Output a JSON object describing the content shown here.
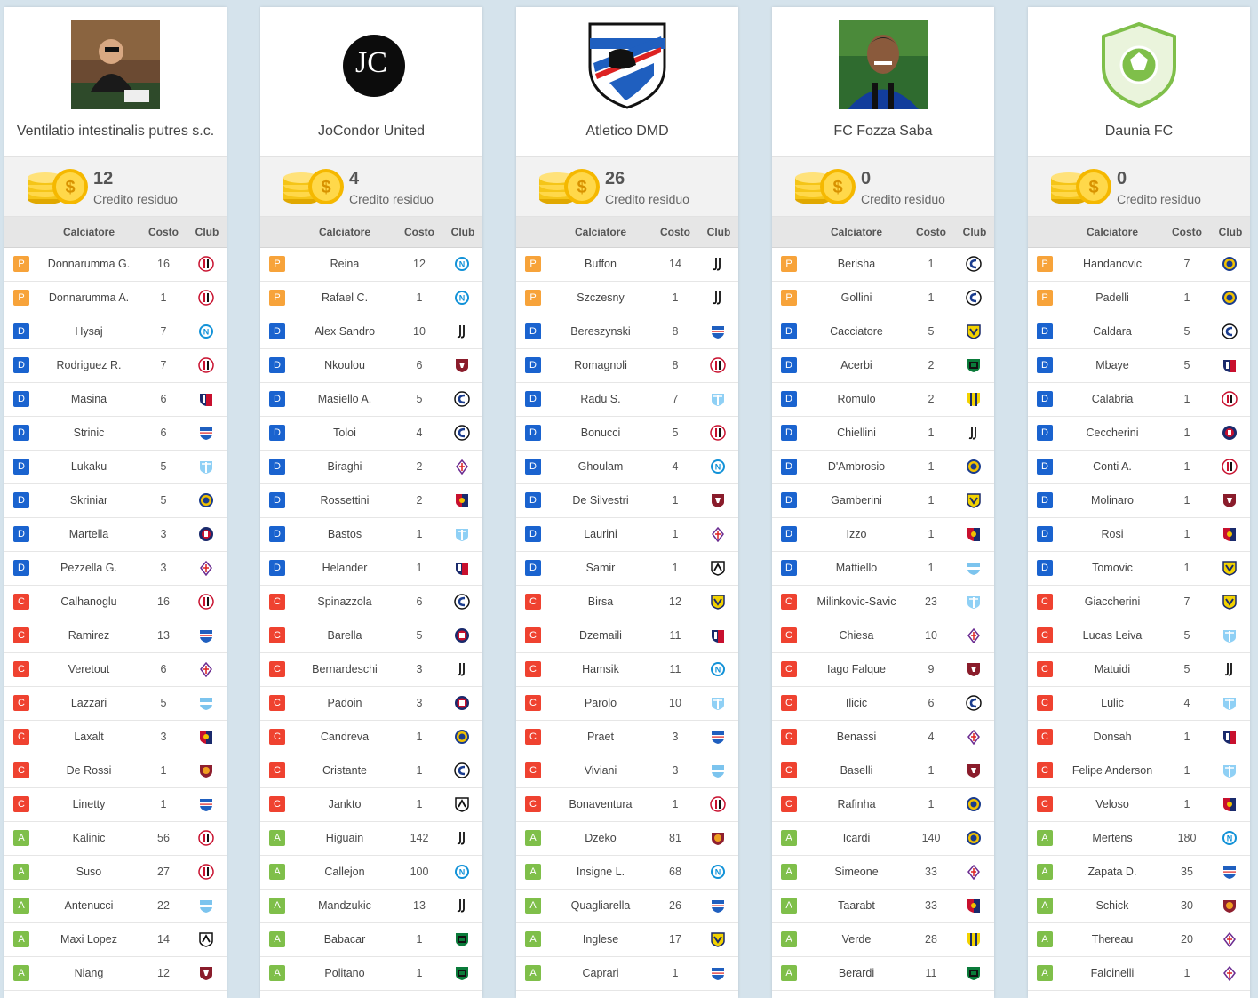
{
  "labels": {
    "credit": "Credito residuo",
    "col_player": "Calciatore",
    "col_cost": "Costo",
    "col_club": "Club"
  },
  "colors": {
    "P": "#f7a33a",
    "D": "#1a63cf",
    "C": "#ef4230",
    "A": "#7fbf4a"
  },
  "teams": [
    {
      "name": "Ventilatio intestinalis putres s.c.",
      "logo": "photo-icon",
      "credit": "12",
      "players": [
        {
          "role": "P",
          "name": "Donnarumma G.",
          "cost": "16",
          "club": "milan"
        },
        {
          "role": "P",
          "name": "Donnarumma A.",
          "cost": "1",
          "club": "milan"
        },
        {
          "role": "D",
          "name": "Hysaj",
          "cost": "7",
          "club": "napoli"
        },
        {
          "role": "D",
          "name": "Rodriguez R.",
          "cost": "7",
          "club": "milan"
        },
        {
          "role": "D",
          "name": "Masina",
          "cost": "6",
          "club": "bologna"
        },
        {
          "role": "D",
          "name": "Strinic",
          "cost": "6",
          "club": "sampdoria"
        },
        {
          "role": "D",
          "name": "Lukaku",
          "cost": "5",
          "club": "lazio"
        },
        {
          "role": "D",
          "name": "Skriniar",
          "cost": "5",
          "club": "inter"
        },
        {
          "role": "D",
          "name": "Martella",
          "cost": "3",
          "club": "crotone"
        },
        {
          "role": "D",
          "name": "Pezzella G.",
          "cost": "3",
          "club": "fiorentina"
        },
        {
          "role": "C",
          "name": "Calhanoglu",
          "cost": "16",
          "club": "milan"
        },
        {
          "role": "C",
          "name": "Ramirez",
          "cost": "13",
          "club": "sampdoria"
        },
        {
          "role": "C",
          "name": "Veretout",
          "cost": "6",
          "club": "fiorentina"
        },
        {
          "role": "C",
          "name": "Lazzari",
          "cost": "5",
          "club": "spal"
        },
        {
          "role": "C",
          "name": "Laxalt",
          "cost": "3",
          "club": "genoa"
        },
        {
          "role": "C",
          "name": "De Rossi",
          "cost": "1",
          "club": "roma"
        },
        {
          "role": "C",
          "name": "Linetty",
          "cost": "1",
          "club": "sampdoria"
        },
        {
          "role": "A",
          "name": "Kalinic",
          "cost": "56",
          "club": "milan"
        },
        {
          "role": "A",
          "name": "Suso",
          "cost": "27",
          "club": "milan"
        },
        {
          "role": "A",
          "name": "Antenucci",
          "cost": "22",
          "club": "spal"
        },
        {
          "role": "A",
          "name": "Maxi Lopez",
          "cost": "14",
          "club": "udinese"
        },
        {
          "role": "A",
          "name": "Niang",
          "cost": "12",
          "club": "torino"
        }
      ]
    },
    {
      "name": "JoCondor United",
      "logo": "jc-logo-icon",
      "logo_text": "JC",
      "credit": "4",
      "players": [
        {
          "role": "P",
          "name": "Reina",
          "cost": "12",
          "club": "napoli"
        },
        {
          "role": "P",
          "name": "Rafael C.",
          "cost": "1",
          "club": "napoli"
        },
        {
          "role": "D",
          "name": "Alex Sandro",
          "cost": "10",
          "club": "juventus"
        },
        {
          "role": "D",
          "name": "Nkoulou",
          "cost": "6",
          "club": "torino"
        },
        {
          "role": "D",
          "name": "Masiello A.",
          "cost": "5",
          "club": "atalanta"
        },
        {
          "role": "D",
          "name": "Toloi",
          "cost": "4",
          "club": "atalanta"
        },
        {
          "role": "D",
          "name": "Biraghi",
          "cost": "2",
          "club": "fiorentina"
        },
        {
          "role": "D",
          "name": "Rossettini",
          "cost": "2",
          "club": "genoa"
        },
        {
          "role": "D",
          "name": "Bastos",
          "cost": "1",
          "club": "lazio"
        },
        {
          "role": "D",
          "name": "Helander",
          "cost": "1",
          "club": "bologna"
        },
        {
          "role": "C",
          "name": "Spinazzola",
          "cost": "6",
          "club": "atalanta"
        },
        {
          "role": "C",
          "name": "Barella",
          "cost": "5",
          "club": "cagliari"
        },
        {
          "role": "C",
          "name": "Bernardeschi",
          "cost": "3",
          "club": "juventus"
        },
        {
          "role": "C",
          "name": "Padoin",
          "cost": "3",
          "club": "cagliari"
        },
        {
          "role": "C",
          "name": "Candreva",
          "cost": "1",
          "club": "inter"
        },
        {
          "role": "C",
          "name": "Cristante",
          "cost": "1",
          "club": "atalanta"
        },
        {
          "role": "C",
          "name": "Jankto",
          "cost": "1",
          "club": "udinese"
        },
        {
          "role": "A",
          "name": "Higuain",
          "cost": "142",
          "club": "juventus"
        },
        {
          "role": "A",
          "name": "Callejon",
          "cost": "100",
          "club": "napoli"
        },
        {
          "role": "A",
          "name": "Mandzukic",
          "cost": "13",
          "club": "juventus"
        },
        {
          "role": "A",
          "name": "Babacar",
          "cost": "1",
          "club": "sassuolo"
        },
        {
          "role": "A",
          "name": "Politano",
          "cost": "1",
          "club": "sassuolo"
        }
      ]
    },
    {
      "name": "Atletico DMD",
      "logo": "shield-crest-icon",
      "credit": "26",
      "players": [
        {
          "role": "P",
          "name": "Buffon",
          "cost": "14",
          "club": "juventus"
        },
        {
          "role": "P",
          "name": "Szczesny",
          "cost": "1",
          "club": "juventus"
        },
        {
          "role": "D",
          "name": "Bereszynski",
          "cost": "8",
          "club": "sampdoria"
        },
        {
          "role": "D",
          "name": "Romagnoli",
          "cost": "8",
          "club": "milan"
        },
        {
          "role": "D",
          "name": "Radu S.",
          "cost": "7",
          "club": "lazio"
        },
        {
          "role": "D",
          "name": "Bonucci",
          "cost": "5",
          "club": "milan"
        },
        {
          "role": "D",
          "name": "Ghoulam",
          "cost": "4",
          "club": "napoli"
        },
        {
          "role": "D",
          "name": "De Silvestri",
          "cost": "1",
          "club": "torino"
        },
        {
          "role": "D",
          "name": "Laurini",
          "cost": "1",
          "club": "fiorentina"
        },
        {
          "role": "D",
          "name": "Samir",
          "cost": "1",
          "club": "udinese"
        },
        {
          "role": "C",
          "name": "Birsa",
          "cost": "12",
          "club": "chievo"
        },
        {
          "role": "C",
          "name": "Dzemaili",
          "cost": "11",
          "club": "bologna"
        },
        {
          "role": "C",
          "name": "Hamsik",
          "cost": "11",
          "club": "napoli"
        },
        {
          "role": "C",
          "name": "Parolo",
          "cost": "10",
          "club": "lazio"
        },
        {
          "role": "C",
          "name": "Praet",
          "cost": "3",
          "club": "sampdoria"
        },
        {
          "role": "C",
          "name": "Viviani",
          "cost": "3",
          "club": "spal"
        },
        {
          "role": "C",
          "name": "Bonaventura",
          "cost": "1",
          "club": "milan"
        },
        {
          "role": "A",
          "name": "Dzeko",
          "cost": "81",
          "club": "roma"
        },
        {
          "role": "A",
          "name": "Insigne L.",
          "cost": "68",
          "club": "napoli"
        },
        {
          "role": "A",
          "name": "Quagliarella",
          "cost": "26",
          "club": "sampdoria"
        },
        {
          "role": "A",
          "name": "Inglese",
          "cost": "17",
          "club": "chievo"
        },
        {
          "role": "A",
          "name": "Caprari",
          "cost": "1",
          "club": "sampdoria"
        }
      ]
    },
    {
      "name": "FC Fozza Saba",
      "logo": "player-photo-icon",
      "credit": "0",
      "players": [
        {
          "role": "P",
          "name": "Berisha",
          "cost": "1",
          "club": "atalanta"
        },
        {
          "role": "P",
          "name": "Gollini",
          "cost": "1",
          "club": "atalanta"
        },
        {
          "role": "D",
          "name": "Cacciatore",
          "cost": "5",
          "club": "chievo"
        },
        {
          "role": "D",
          "name": "Acerbi",
          "cost": "2",
          "club": "sassuolo"
        },
        {
          "role": "D",
          "name": "Romulo",
          "cost": "2",
          "club": "verona"
        },
        {
          "role": "D",
          "name": "Chiellini",
          "cost": "1",
          "club": "juventus"
        },
        {
          "role": "D",
          "name": "D'Ambrosio",
          "cost": "1",
          "club": "inter"
        },
        {
          "role": "D",
          "name": "Gamberini",
          "cost": "1",
          "club": "chievo"
        },
        {
          "role": "D",
          "name": "Izzo",
          "cost": "1",
          "club": "genoa"
        },
        {
          "role": "D",
          "name": "Mattiello",
          "cost": "1",
          "club": "spal"
        },
        {
          "role": "C",
          "name": "Milinkovic-Savic",
          "cost": "23",
          "club": "lazio"
        },
        {
          "role": "C",
          "name": "Chiesa",
          "cost": "10",
          "club": "fiorentina"
        },
        {
          "role": "C",
          "name": "Iago Falque",
          "cost": "9",
          "club": "torino"
        },
        {
          "role": "C",
          "name": "Ilicic",
          "cost": "6",
          "club": "atalanta"
        },
        {
          "role": "C",
          "name": "Benassi",
          "cost": "4",
          "club": "fiorentina"
        },
        {
          "role": "C",
          "name": "Baselli",
          "cost": "1",
          "club": "torino"
        },
        {
          "role": "C",
          "name": "Rafinha",
          "cost": "1",
          "club": "inter"
        },
        {
          "role": "A",
          "name": "Icardi",
          "cost": "140",
          "club": "inter"
        },
        {
          "role": "A",
          "name": "Simeone",
          "cost": "33",
          "club": "fiorentina"
        },
        {
          "role": "A",
          "name": "Taarabt",
          "cost": "33",
          "club": "genoa"
        },
        {
          "role": "A",
          "name": "Verde",
          "cost": "28",
          "club": "verona"
        },
        {
          "role": "A",
          "name": "Berardi",
          "cost": "11",
          "club": "sassuolo"
        }
      ]
    },
    {
      "name": "Daunia FC",
      "logo": "football-shield-icon",
      "credit": "0",
      "players": [
        {
          "role": "P",
          "name": "Handanovic",
          "cost": "7",
          "club": "inter"
        },
        {
          "role": "P",
          "name": "Padelli",
          "cost": "1",
          "club": "inter"
        },
        {
          "role": "D",
          "name": "Caldara",
          "cost": "5",
          "club": "atalanta"
        },
        {
          "role": "D",
          "name": "Mbaye",
          "cost": "5",
          "club": "bologna"
        },
        {
          "role": "D",
          "name": "Calabria",
          "cost": "1",
          "club": "milan"
        },
        {
          "role": "D",
          "name": "Ceccherini",
          "cost": "1",
          "club": "crotone"
        },
        {
          "role": "D",
          "name": "Conti A.",
          "cost": "1",
          "club": "milan"
        },
        {
          "role": "D",
          "name": "Molinaro",
          "cost": "1",
          "club": "torino"
        },
        {
          "role": "D",
          "name": "Rosi",
          "cost": "1",
          "club": "genoa"
        },
        {
          "role": "D",
          "name": "Tomovic",
          "cost": "1",
          "club": "chievo"
        },
        {
          "role": "C",
          "name": "Giaccherini",
          "cost": "7",
          "club": "chievo"
        },
        {
          "role": "C",
          "name": "Lucas Leiva",
          "cost": "5",
          "club": "lazio"
        },
        {
          "role": "C",
          "name": "Matuidi",
          "cost": "5",
          "club": "juventus"
        },
        {
          "role": "C",
          "name": "Lulic",
          "cost": "4",
          "club": "lazio"
        },
        {
          "role": "C",
          "name": "Donsah",
          "cost": "1",
          "club": "bologna"
        },
        {
          "role": "C",
          "name": "Felipe Anderson",
          "cost": "1",
          "club": "lazio"
        },
        {
          "role": "C",
          "name": "Veloso",
          "cost": "1",
          "club": "genoa"
        },
        {
          "role": "A",
          "name": "Mertens",
          "cost": "180",
          "club": "napoli"
        },
        {
          "role": "A",
          "name": "Zapata D.",
          "cost": "35",
          "club": "sampdoria"
        },
        {
          "role": "A",
          "name": "Schick",
          "cost": "30",
          "club": "roma"
        },
        {
          "role": "A",
          "name": "Thereau",
          "cost": "20",
          "club": "fiorentina"
        },
        {
          "role": "A",
          "name": "Falcinelli",
          "cost": "1",
          "club": "fiorentina"
        }
      ]
    }
  ]
}
